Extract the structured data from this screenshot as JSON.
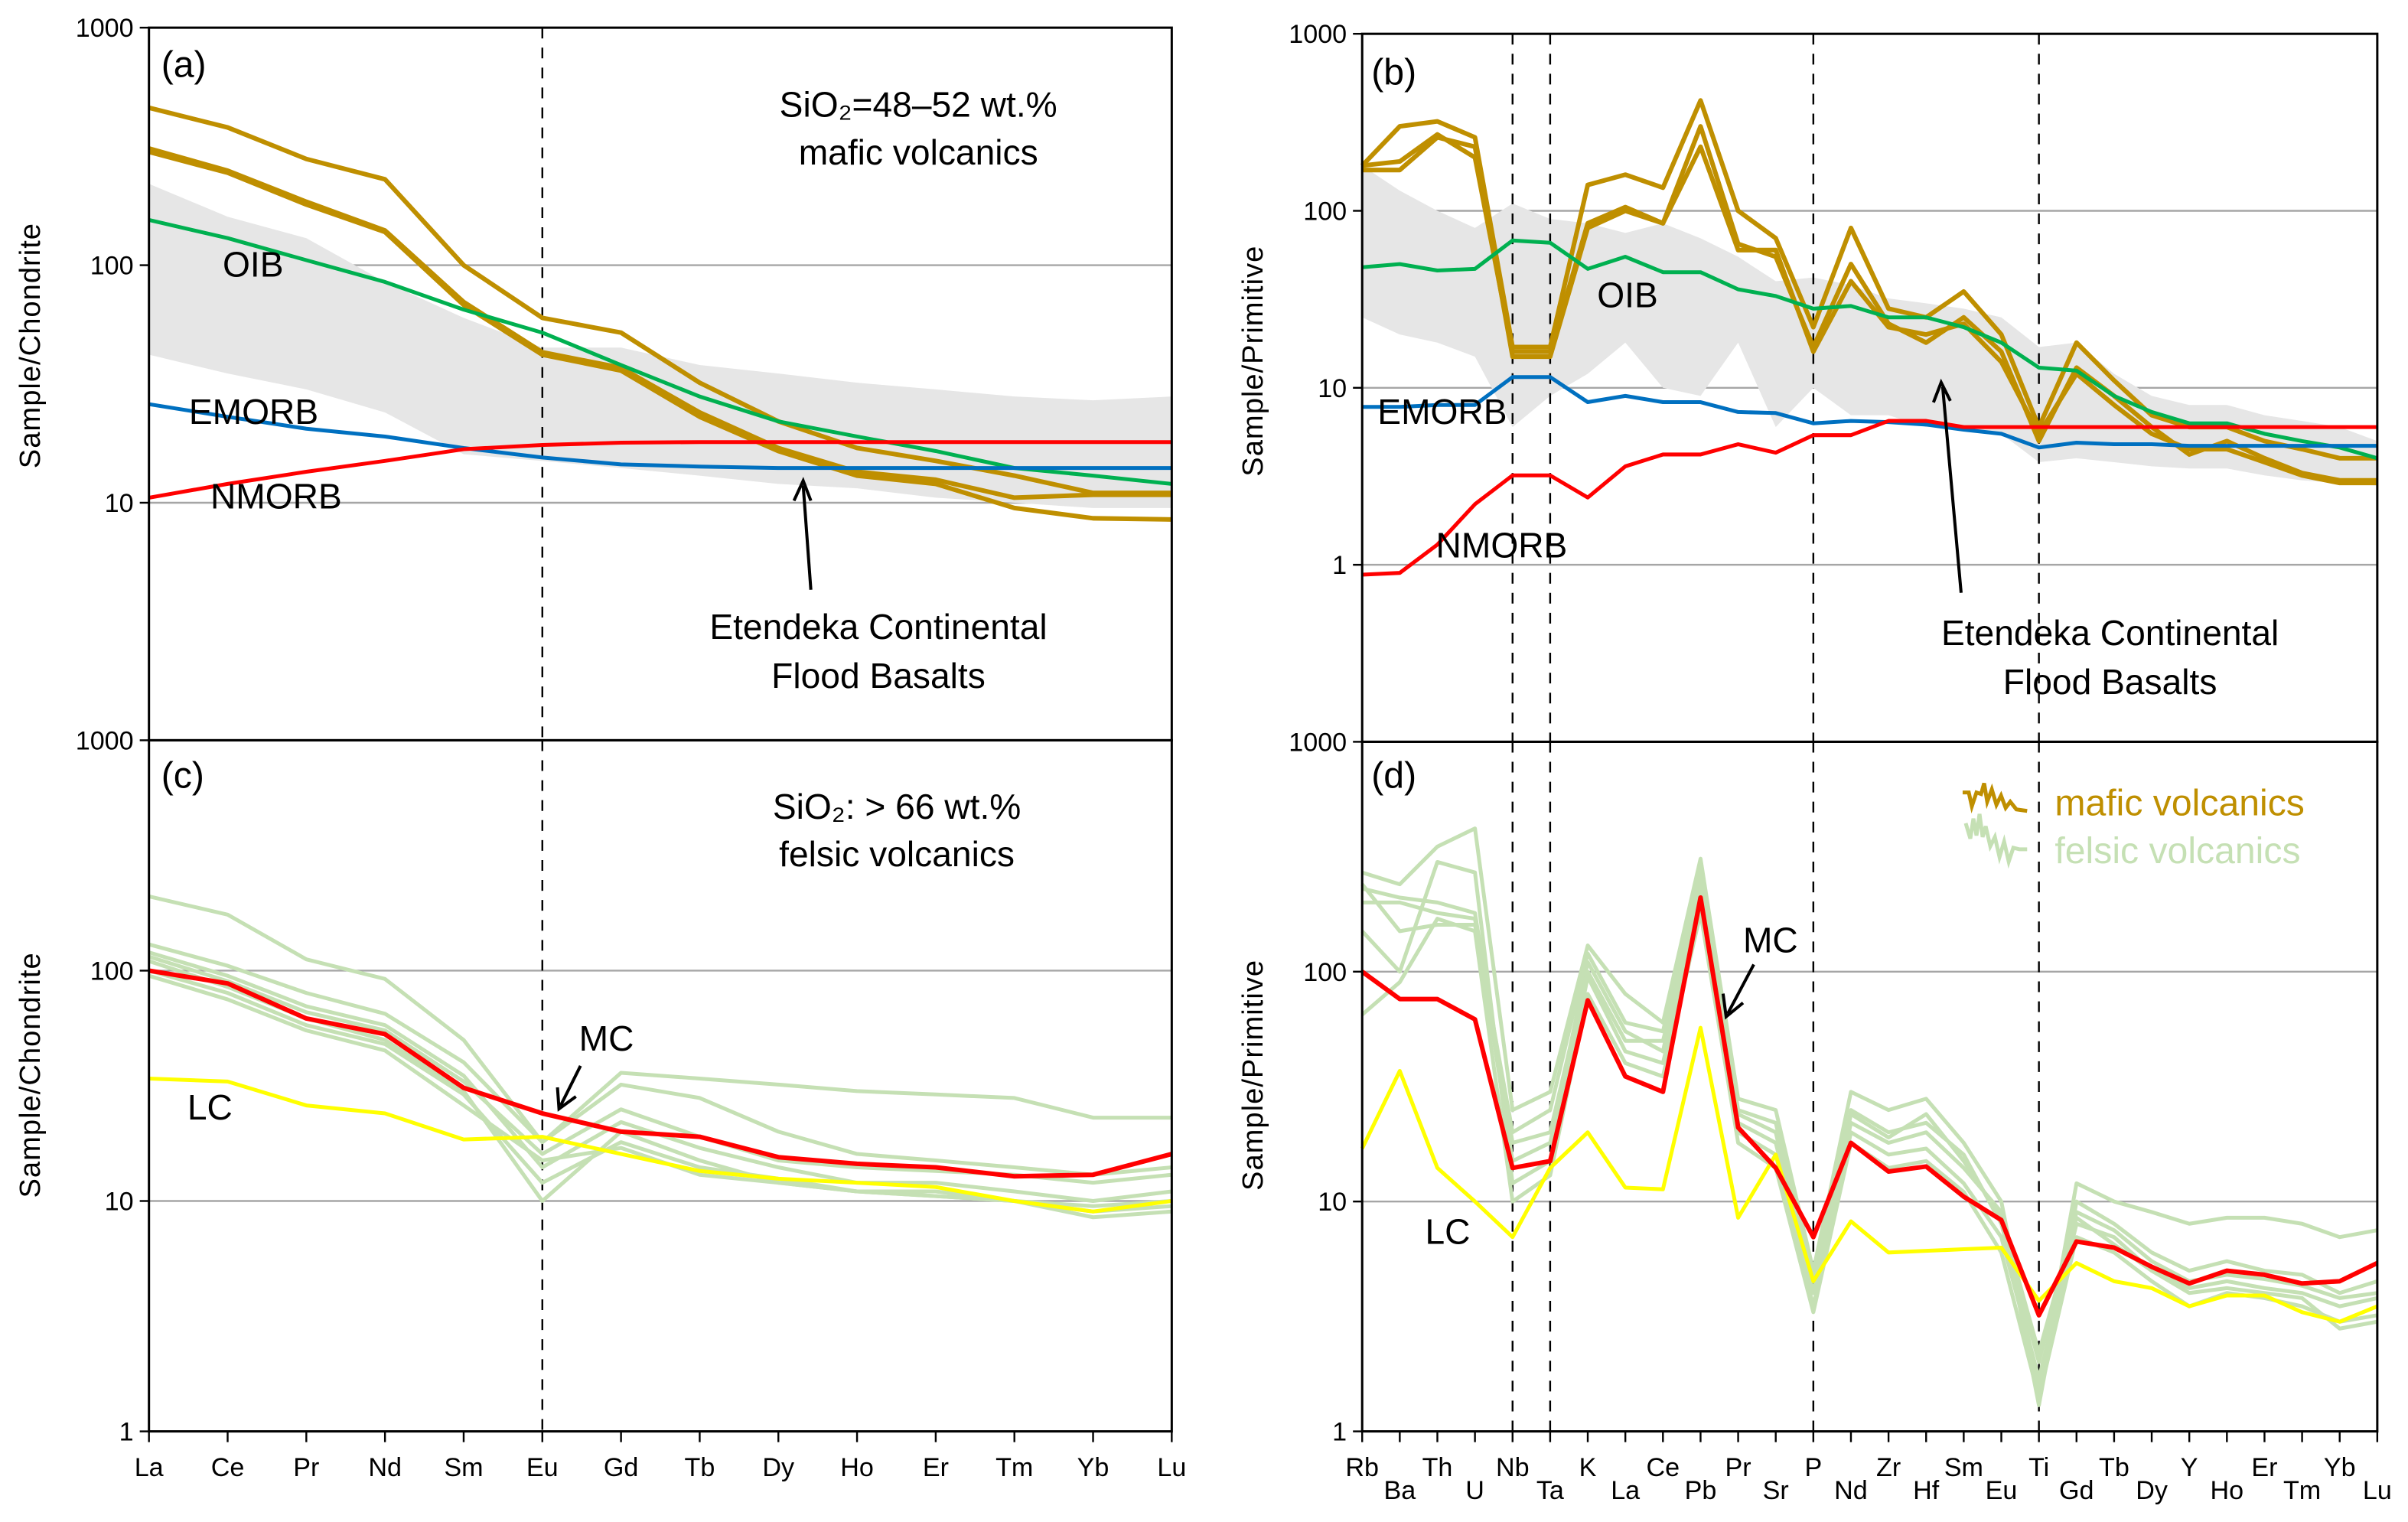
{
  "colors": {
    "mafic": "#bf8f00",
    "felsic": "#c5e0b4",
    "oib": "#00b050",
    "emorb": "#0070c0",
    "nmorb": "#ff0000",
    "mc": "#ff0000",
    "lc": "#ffff00",
    "band": "#e6e6e6"
  },
  "legend": {
    "mafic": "mafic volcanics",
    "felsic": "felsic volcanics",
    "mafic_icon": "mafic-squiggle-icon",
    "felsic_icon": "felsic-squiggle-icon"
  },
  "chart_data": [
    {
      "id": "a",
      "type": "line",
      "panel_label": "(a)",
      "ylabel": "Sample/Chondrite",
      "yscale": "log",
      "ylim": [
        1,
        1000
      ],
      "ytick_labels": [
        "1000",
        "100",
        "10"
      ],
      "categories": [
        "La",
        "Ce",
        "Pr",
        "Nd",
        "Sm",
        "Eu",
        "Gd",
        "Tb",
        "Dy",
        "Ho",
        "Er",
        "Tm",
        "Yb",
        "Lu"
      ],
      "dashed_at": [
        "Eu"
      ],
      "title_lines": [
        "SiO₂=48–52 wt.%",
        "mafic volcanics"
      ],
      "band": {
        "name": "OIB-MORB field",
        "upper": [
          220,
          160,
          130,
          85,
          60,
          45,
          45,
          38,
          35,
          32,
          30,
          28,
          27,
          28
        ],
        "lower": [
          42,
          35,
          30,
          24,
          16,
          15,
          14,
          13,
          12,
          11.5,
          10.5,
          10,
          9.5,
          9.5
        ]
      },
      "series": [
        {
          "name": "Etendeka 1",
          "group": "mafic",
          "values": [
            460,
            380,
            280,
            230,
            100,
            60,
            52,
            32,
            22,
            17,
            15,
            13,
            11,
            11
          ]
        },
        {
          "name": "Etendeka 2",
          "group": "mafic",
          "values": [
            310,
            250,
            185,
            140,
            70,
            43,
            37,
            24,
            17,
            13.5,
            12.5,
            10.5,
            10.8,
            10.8
          ]
        },
        {
          "name": "Etendeka 3",
          "group": "mafic",
          "values": [
            300,
            245,
            180,
            138,
            68,
            42,
            36,
            23,
            16.5,
            13,
            12,
            9.5,
            8.6,
            8.5
          ]
        },
        {
          "name": "OIB",
          "group": "oib",
          "values": [
            155,
            130,
            105,
            85,
            65,
            52,
            38,
            28,
            22,
            19,
            16.5,
            14,
            13,
            12
          ]
        },
        {
          "name": "EMORB",
          "group": "emorb",
          "values": [
            26,
            23,
            20.5,
            19,
            17,
            15.5,
            14.5,
            14.2,
            14,
            14,
            14,
            14,
            14,
            14
          ]
        },
        {
          "name": "NMORB",
          "group": "nmorb",
          "values": [
            10.5,
            12,
            13.5,
            15,
            16.8,
            17.5,
            17.9,
            18,
            18,
            18,
            18,
            18,
            18,
            18
          ]
        }
      ],
      "labels": [
        "OIB",
        "EMORB",
        "NMORB"
      ],
      "annotation": [
        "Etendeka Continental",
        "Flood Basalts"
      ]
    },
    {
      "id": "b",
      "type": "line",
      "panel_label": "(b)",
      "ylabel": "Sample/Primitive",
      "yscale": "log",
      "ylim": [
        0.1,
        1000
      ],
      "ytick_labels": [
        "1000",
        "100",
        "10",
        "1"
      ],
      "categories": [
        "Rb",
        "Ba",
        "Th",
        "U",
        "Nb",
        "Ta",
        "K",
        "La",
        "Ce",
        "Pb",
        "Pr",
        "Sr",
        "P",
        "Nd",
        "Zr",
        "Hf",
        "Sm",
        "Eu",
        "Ti",
        "Gd",
        "Tb",
        "Dy",
        "Y",
        "Ho",
        "Er",
        "Tm",
        "Yb",
        "Lu"
      ],
      "dashed_at": [
        "Nb",
        "Ta",
        "P",
        "Ti"
      ],
      "band": {
        "name": "OIB-MORB field",
        "upper": [
          180,
          130,
          100,
          80,
          110,
          90,
          85,
          75,
          85,
          70,
          55,
          40,
          42,
          38,
          32,
          30,
          28,
          25,
          17,
          18,
          12,
          9,
          8,
          8,
          7,
          6.5,
          6,
          5
        ],
        "lower": [
          25,
          20,
          18,
          15,
          6,
          9,
          12,
          18,
          10,
          9,
          18,
          6,
          10,
          7,
          7,
          6,
          6,
          5.5,
          3.8,
          4,
          3.8,
          3.6,
          3.5,
          3.5,
          3.2,
          3,
          2.9,
          2.8
        ]
      },
      "series": [
        {
          "name": "Etendeka 1",
          "group": "mafic",
          "values": [
            180,
            300,
            320,
            260,
            17,
            17,
            140,
            160,
            135,
            420,
            100,
            70,
            22,
            80,
            28,
            25,
            35,
            20,
            6,
            18,
            11,
            7,
            6,
            6,
            5,
            4.5,
            4,
            4
          ]
        },
        {
          "name": "Etendeka 2",
          "group": "mafic",
          "values": [
            180,
            190,
            270,
            200,
            16,
            16,
            85,
            105,
            85,
            300,
            65,
            55,
            17,
            50,
            23,
            18,
            25,
            16,
            5,
            13,
            9,
            6,
            4.2,
            5,
            4,
            3.3,
            3,
            3
          ]
        },
        {
          "name": "Etendeka 3",
          "group": "mafic",
          "values": [
            170,
            170,
            260,
            230,
            15,
            15,
            80,
            100,
            85,
            230,
            60,
            60,
            16,
            40,
            22,
            20,
            23,
            14,
            5.5,
            12,
            8,
            5.5,
            4.5,
            4.5,
            3.8,
            3.2,
            2.9,
            2.9
          ]
        },
        {
          "name": "OIB",
          "group": "oib",
          "values": [
            48,
            50,
            46,
            47,
            68,
            66,
            47,
            55,
            45,
            45,
            36,
            33,
            28,
            29,
            25,
            25,
            22,
            18,
            13,
            12.5,
            9,
            7.3,
            6.3,
            6.3,
            5.5,
            5,
            4.6,
            4
          ]
        },
        {
          "name": "EMORB",
          "group": "emorb",
          "values": [
            7.8,
            7.8,
            8,
            8,
            11.5,
            11.5,
            8.3,
            9,
            8.3,
            8.3,
            7.3,
            7.2,
            6.3,
            6.5,
            6.4,
            6.2,
            5.8,
            5.5,
            4.6,
            4.9,
            4.8,
            4.8,
            4.7,
            4.7,
            4.7,
            4.7,
            4.7,
            4.7
          ]
        },
        {
          "name": "NMORB",
          "group": "nmorb",
          "values": [
            0.88,
            0.9,
            1.3,
            2.2,
            3.2,
            3.2,
            2.4,
            3.6,
            4.2,
            4.2,
            4.8,
            4.3,
            5.4,
            5.4,
            6.5,
            6.5,
            6,
            6,
            6,
            6,
            6,
            6,
            6,
            6,
            6,
            6,
            6,
            6
          ]
        }
      ],
      "labels": [
        "OIB",
        "EMORB",
        "NMORB"
      ],
      "annotation": [
        "Etendeka Continental",
        "Flood Basalts"
      ]
    },
    {
      "id": "c",
      "type": "line",
      "panel_label": "(c)",
      "ylabel": "Sample/Chondrite",
      "yscale": "log",
      "ylim": [
        1,
        1000
      ],
      "ytick_labels": [
        "1000",
        "100",
        "10",
        "1"
      ],
      "categories": [
        "La",
        "Ce",
        "Pr",
        "Nd",
        "Sm",
        "Eu",
        "Gd",
        "Tb",
        "Dy",
        "Ho",
        "Er",
        "Tm",
        "Yb",
        "Lu"
      ],
      "dashed_at": [
        "Eu"
      ],
      "title_lines": [
        "SiO₂: > 66 wt.%",
        "felsic volcanics"
      ],
      "series": [
        {
          "name": "Felsic 1",
          "group": "felsic",
          "values": [
            210,
            175,
            112,
            92,
            50,
            18,
            36,
            34,
            32,
            30,
            29,
            28,
            23,
            23
          ]
        },
        {
          "name": "Felsic 2",
          "group": "felsic",
          "values": [
            130,
            105,
            80,
            65,
            40,
            18,
            32,
            28,
            20,
            16,
            15,
            14,
            13,
            14
          ]
        },
        {
          "name": "Felsic 3",
          "group": "felsic",
          "values": [
            120,
            95,
            70,
            58,
            35,
            14,
            22,
            17,
            14,
            12,
            12,
            11,
            10,
            11
          ]
        },
        {
          "name": "Felsic 4",
          "group": "felsic",
          "values": [
            110,
            85,
            62,
            50,
            30,
            10,
            20,
            15,
            12,
            11,
            10.5,
            10,
            9,
            9.5
          ]
        },
        {
          "name": "Felsic 5",
          "group": "felsic",
          "values": [
            100,
            80,
            58,
            48,
            29,
            12,
            18,
            14,
            12.5,
            11,
            10.5,
            10,
            8.5,
            9
          ]
        },
        {
          "name": "Felsic 6",
          "group": "felsic",
          "values": [
            95,
            75,
            55,
            45,
            26,
            15,
            17,
            13,
            12,
            11,
            11,
            10,
            9.5,
            10
          ]
        },
        {
          "name": "Felsic 7",
          "group": "felsic",
          "values": [
            115,
            90,
            66,
            55,
            33,
            16,
            25,
            19,
            15,
            14,
            13.5,
            13,
            12,
            13
          ]
        },
        {
          "name": "LC",
          "group": "lc",
          "values": [
            34,
            33,
            26,
            24,
            18.5,
            19,
            16,
            13.5,
            12.5,
            12,
            11.5,
            10,
            9,
            10
          ]
        },
        {
          "name": "MC",
          "group": "mc",
          "values": [
            100,
            88,
            62,
            53,
            31,
            24,
            20,
            19,
            15.5,
            14.5,
            14,
            12.8,
            13,
            16
          ]
        }
      ],
      "labels": [
        "MC",
        "LC"
      ]
    },
    {
      "id": "d",
      "type": "line",
      "panel_label": "(d)",
      "ylabel": "Sample/Primitive",
      "yscale": "log",
      "ylim": [
        1,
        1000
      ],
      "ytick_labels": [
        "1000",
        "100",
        "10",
        "1"
      ],
      "categories": [
        "Rb",
        "Ba",
        "Th",
        "U",
        "Nb",
        "Ta",
        "K",
        "La",
        "Ce",
        "Pb",
        "Pr",
        "Sr",
        "P",
        "Nd",
        "Zr",
        "Hf",
        "Sm",
        "Eu",
        "Ti",
        "Gd",
        "Tb",
        "Dy",
        "Y",
        "Ho",
        "Er",
        "Tm",
        "Yb",
        "Lu"
      ],
      "dashed_at": [
        "Nb",
        "Ta",
        "P",
        "Ti"
      ],
      "series": [
        {
          "name": "Felsic 1",
          "group": "felsic",
          "values": [
            270,
            240,
            350,
            420,
            25,
            30,
            130,
            80,
            60,
            310,
            28,
            25,
            5,
            30,
            25,
            28,
            18,
            10,
            1.5,
            12,
            10,
            9,
            8,
            8.5,
            8.5,
            8,
            7,
            7.5
          ]
        },
        {
          "name": "Felsic 2",
          "group": "felsic",
          "values": [
            200,
            200,
            180,
            170,
            15,
            18,
            110,
            55,
            45,
            250,
            22,
            18,
            4,
            22,
            18,
            20,
            14,
            9,
            1.3,
            10,
            8,
            6,
            5,
            5.5,
            5,
            4.8,
            4,
            4.5
          ]
        },
        {
          "name": "Felsic 3",
          "group": "felsic",
          "values": [
            150,
            100,
            300,
            270,
            12,
            15,
            95,
            45,
            40,
            200,
            20,
            16,
            3.5,
            20,
            16,
            17,
            12,
            7,
            1.7,
            8,
            7,
            5,
            4.2,
            4.5,
            4.2,
            4,
            3.5,
            3.8
          ]
        },
        {
          "name": "Felsic 4",
          "group": "felsic",
          "values": [
            240,
            150,
            160,
            160,
            20,
            25,
            120,
            60,
            55,
            280,
            25,
            22,
            4.5,
            25,
            20,
            22,
            16,
            8,
            2,
            9,
            7.5,
            5.5,
            4.5,
            4.8,
            4.6,
            4.3,
            3.8,
            4
          ]
        },
        {
          "name": "Felsic 5",
          "group": "felsic",
          "values": [
            65,
            90,
            170,
            150,
            10,
            13,
            80,
            40,
            35,
            180,
            18,
            14,
            3.3,
            18,
            14,
            15,
            11,
            6,
            1.4,
            7,
            6,
            4.5,
            3.5,
            4,
            3.8,
            3.5,
            3,
            3.2
          ]
        },
        {
          "name": "Felsic 6",
          "group": "felsic",
          "values": [
            230,
            210,
            200,
            180,
            18,
            20,
            100,
            50,
            50,
            220,
            24,
            20,
            4,
            24,
            19,
            24,
            15,
            8.5,
            2.2,
            8.5,
            6.5,
            5,
            4,
            4.2,
            4,
            3.8,
            2.8,
            3
          ]
        },
        {
          "name": "LC",
          "group": "lc",
          "values": [
            17,
            37,
            14,
            10,
            7,
            14,
            20,
            11.5,
            11.3,
            57,
            8.5,
            16,
            4.5,
            8.2,
            6,
            6.1,
            6.2,
            6.3,
            3.7,
            5.4,
            4.5,
            4.2,
            3.5,
            3.9,
            3.9,
            3.3,
            3,
            3.5
          ]
        },
        {
          "name": "MC",
          "group": "mc",
          "values": [
            100,
            76,
            76,
            62,
            14,
            15,
            75,
            35,
            30,
            210,
            21,
            14,
            7,
            18,
            13.5,
            14.2,
            10.5,
            8.3,
            3.2,
            6.7,
            6.3,
            5.2,
            4.4,
            5,
            4.8,
            4.4,
            4.5,
            5.4
          ]
        }
      ],
      "labels": [
        "MC",
        "LC"
      ],
      "legend_placement": "top-right"
    }
  ]
}
